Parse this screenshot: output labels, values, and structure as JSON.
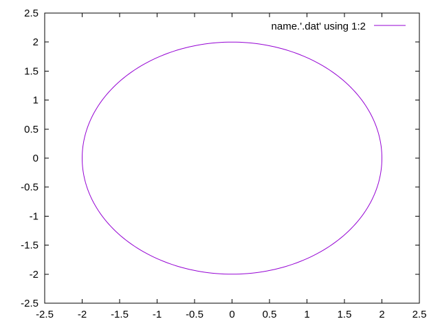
{
  "chart_data": {
    "type": "line",
    "title": "",
    "xlabel": "",
    "ylabel": "",
    "xlim": [
      -2.5,
      2.5
    ],
    "ylim": [
      -2.5,
      2.5
    ],
    "xticks": [
      "-2.5",
      "-2",
      "-1.5",
      "-1",
      "-0.5",
      "0",
      "0.5",
      "1",
      "1.5",
      "2",
      "2.5"
    ],
    "yticks": [
      "-2.5",
      "-2",
      "-1.5",
      "-1",
      "-0.5",
      "0",
      "0.5",
      "1",
      "1.5",
      "2",
      "2.5"
    ],
    "grid": false,
    "legend_position": "top-right",
    "series": [
      {
        "name": "name.'.dat' using 1:2",
        "color": "#9400d3",
        "shape": "circle",
        "center": [
          0,
          0
        ],
        "radius": 2,
        "x": [
          2,
          1.732,
          1,
          0,
          -1,
          -1.732,
          -2,
          -1.732,
          -1,
          0,
          1,
          1.732,
          2
        ],
        "y": [
          0,
          1,
          1.732,
          2,
          1.732,
          1,
          0,
          -1,
          -1.732,
          -2,
          -1.732,
          -1,
          0
        ]
      }
    ]
  }
}
